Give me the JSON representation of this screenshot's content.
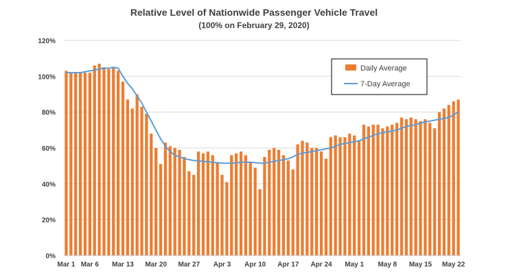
{
  "chart_data": {
    "type": "bar",
    "title": "Relative Level of Nationwide Passenger Vehicle Travel",
    "subtitle": "(100% on February 29, 2020)",
    "xlabel": "",
    "ylabel": "",
    "ylim": [
      0,
      120
    ],
    "yticks": [
      "0%",
      "20%",
      "40%",
      "60%",
      "80%",
      "100%",
      "120%"
    ],
    "grid": true,
    "legend_position": "top-right",
    "x_tick_labels": [
      {
        "label": "Mar 1",
        "index": 0
      },
      {
        "label": "Mar 6",
        "index": 5
      },
      {
        "label": "Mar 13",
        "index": 12
      },
      {
        "label": "Mar 20",
        "index": 19
      },
      {
        "label": "Mar 27",
        "index": 26
      },
      {
        "label": "Apr 3",
        "index": 33
      },
      {
        "label": "Apr 10",
        "index": 40
      },
      {
        "label": "Apr 17",
        "index": 47
      },
      {
        "label": "Apr 24",
        "index": 54
      },
      {
        "label": "May 1",
        "index": 61
      },
      {
        "label": "May 8",
        "index": 68
      },
      {
        "label": "May 15",
        "index": 75
      },
      {
        "label": "May 22",
        "index": 82
      }
    ],
    "series": [
      {
        "name": "Daily Average",
        "kind": "bar",
        "color": "#ED7D31",
        "values": [
          103,
          102,
          102,
          102,
          102,
          102,
          106,
          107,
          105,
          104,
          105,
          103,
          97,
          87,
          82,
          90,
          83,
          79,
          68,
          60,
          51,
          63,
          61,
          60,
          59,
          55,
          47,
          45,
          58,
          57,
          58,
          56,
          52,
          45,
          41,
          56,
          57,
          58,
          56,
          52,
          49,
          37,
          55,
          59,
          60,
          59,
          56,
          53,
          48,
          62,
          64,
          63,
          60,
          60,
          58,
          54,
          66,
          67,
          66,
          66,
          68,
          67,
          64,
          73,
          72,
          73,
          73,
          71,
          72,
          73,
          74,
          77,
          76,
          77,
          76,
          75,
          76,
          74,
          71,
          80,
          82,
          84,
          86,
          87
        ],
        "value_unit": "%"
      },
      {
        "name": "7-Day Average",
        "kind": "line",
        "color": "#5B9BD5",
        "values": [
          102,
          102,
          102,
          102,
          102.5,
          103,
          103.5,
          104,
          104.5,
          104.5,
          105,
          104.5,
          100,
          96,
          93,
          89,
          85,
          80,
          75,
          70,
          65,
          61,
          58,
          56,
          55,
          54,
          53.5,
          53,
          52.8,
          52.5,
          52.3,
          52,
          51.8,
          51.5,
          51.5,
          51.5,
          51.7,
          52,
          52,
          52,
          51.8,
          51.5,
          51.5,
          52,
          52.5,
          53,
          53.5,
          54,
          55,
          56.5,
          57,
          57.5,
          58,
          58.5,
          59,
          59.5,
          60,
          61,
          62,
          62.5,
          63,
          63.5,
          64,
          65,
          66,
          67,
          68,
          68.5,
          69,
          69.5,
          70,
          71,
          72,
          72.5,
          73,
          74,
          74.5,
          75,
          75.5,
          76,
          76.5,
          77,
          78.5,
          80
        ],
        "value_unit": "%"
      }
    ]
  }
}
